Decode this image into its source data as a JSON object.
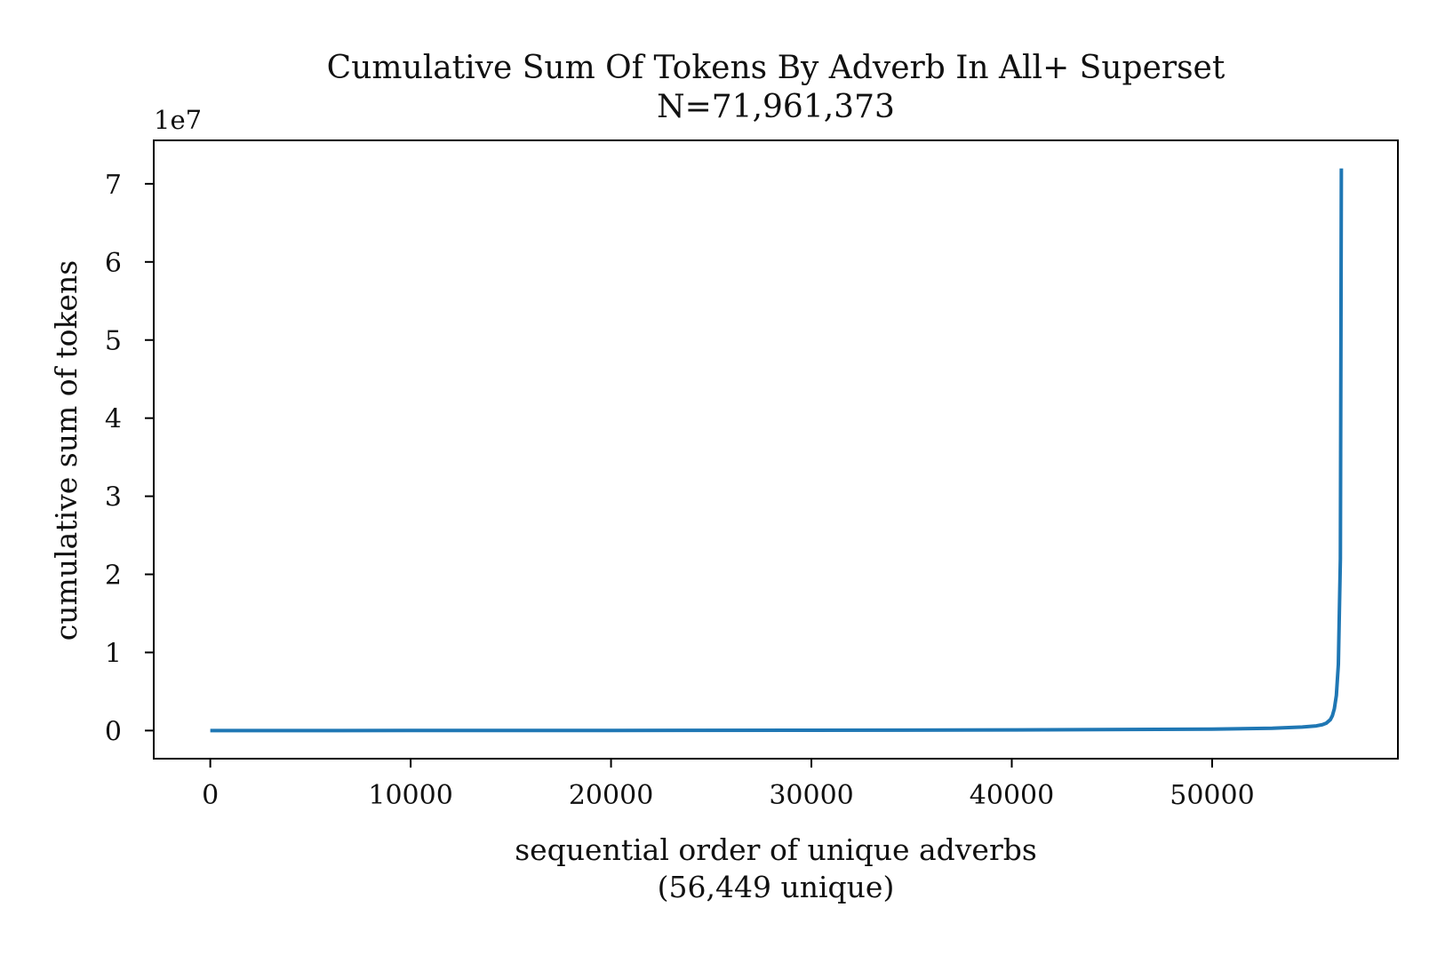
{
  "chart_data": {
    "type": "line",
    "title": "Cumulative Sum Of Tokens By Adverb In All+ Superset",
    "subtitle": "N=71,961,373",
    "xlabel": "sequential order of unique adverbs",
    "xlabel_note": "(56,449 unique)",
    "ylabel": "cumulative sum of tokens",
    "y_offset_label": "1e7",
    "xlim": [
      -2822,
      59271
    ],
    "ylim": [
      -3598069,
      75561883
    ],
    "x_ticks": [
      0,
      10000,
      20000,
      30000,
      40000,
      50000
    ],
    "x_tick_labels": [
      "0",
      "10000",
      "20000",
      "30000",
      "40000",
      "50000"
    ],
    "y_ticks": [
      0,
      10000000,
      20000000,
      30000000,
      40000000,
      50000000,
      60000000,
      70000000
    ],
    "y_tick_labels": [
      "0",
      "1",
      "2",
      "3",
      "4",
      "5",
      "6",
      "7"
    ],
    "grid": false,
    "series_color": "#1f77b4",
    "series": [
      {
        "x": [
          0,
          5000,
          10000,
          20000,
          30000,
          40000,
          50000,
          53000,
          54500,
          55200,
          55500,
          55700,
          55900,
          56000,
          56100,
          56200,
          56300,
          56400,
          56449
        ],
        "y": [
          1,
          4000,
          8000,
          20000,
          40000,
          80000,
          180000,
          300000,
          450000,
          600000,
          750000,
          950000,
          1400000,
          1900000,
          2800000,
          4500000,
          8500000,
          22000000,
          71961373
        ]
      }
    ]
  }
}
